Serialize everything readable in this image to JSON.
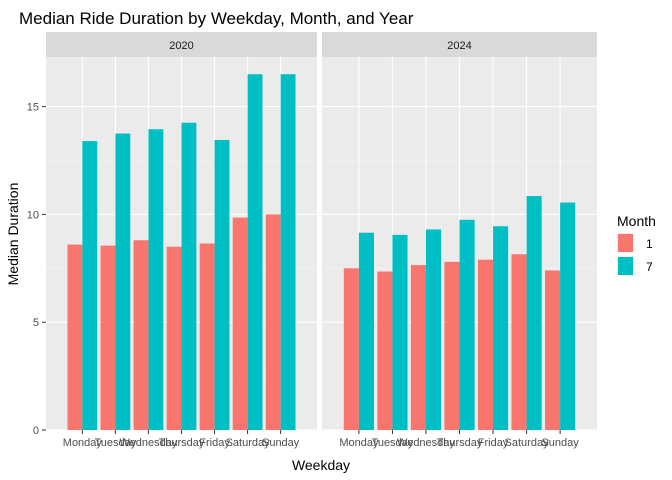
{
  "chart_data": {
    "type": "bar",
    "title": "Median Ride Duration by Weekday, Month, and Year",
    "xlabel": "Weekday",
    "ylabel": "Median Duration",
    "ylim": [
      0,
      17.3
    ],
    "yticks": [
      0,
      5,
      10,
      15
    ],
    "categories": [
      "Monday",
      "Tuesday",
      "Wednesday",
      "Thursday",
      "Friday",
      "Saturday",
      "Sunday"
    ],
    "legend": {
      "title": "Month",
      "position": "right"
    },
    "grid": true,
    "facets": [
      {
        "label": "2020",
        "series": [
          {
            "name": "1",
            "color": "#F8766D",
            "values": [
              8.6,
              8.55,
              8.8,
              8.5,
              8.65,
              9.85,
              10.0
            ]
          },
          {
            "name": "7",
            "color": "#00BFC4",
            "values": [
              13.4,
              13.75,
              13.95,
              14.25,
              13.45,
              16.5,
              16.5
            ]
          }
        ]
      },
      {
        "label": "2024",
        "series": [
          {
            "name": "1",
            "color": "#F8766D",
            "values": [
              7.5,
              7.35,
              7.65,
              7.8,
              7.9,
              8.15,
              7.4
            ]
          },
          {
            "name": "7",
            "color": "#00BFC4",
            "values": [
              9.15,
              9.05,
              9.3,
              9.75,
              9.45,
              10.85,
              10.55
            ]
          }
        ]
      }
    ]
  }
}
